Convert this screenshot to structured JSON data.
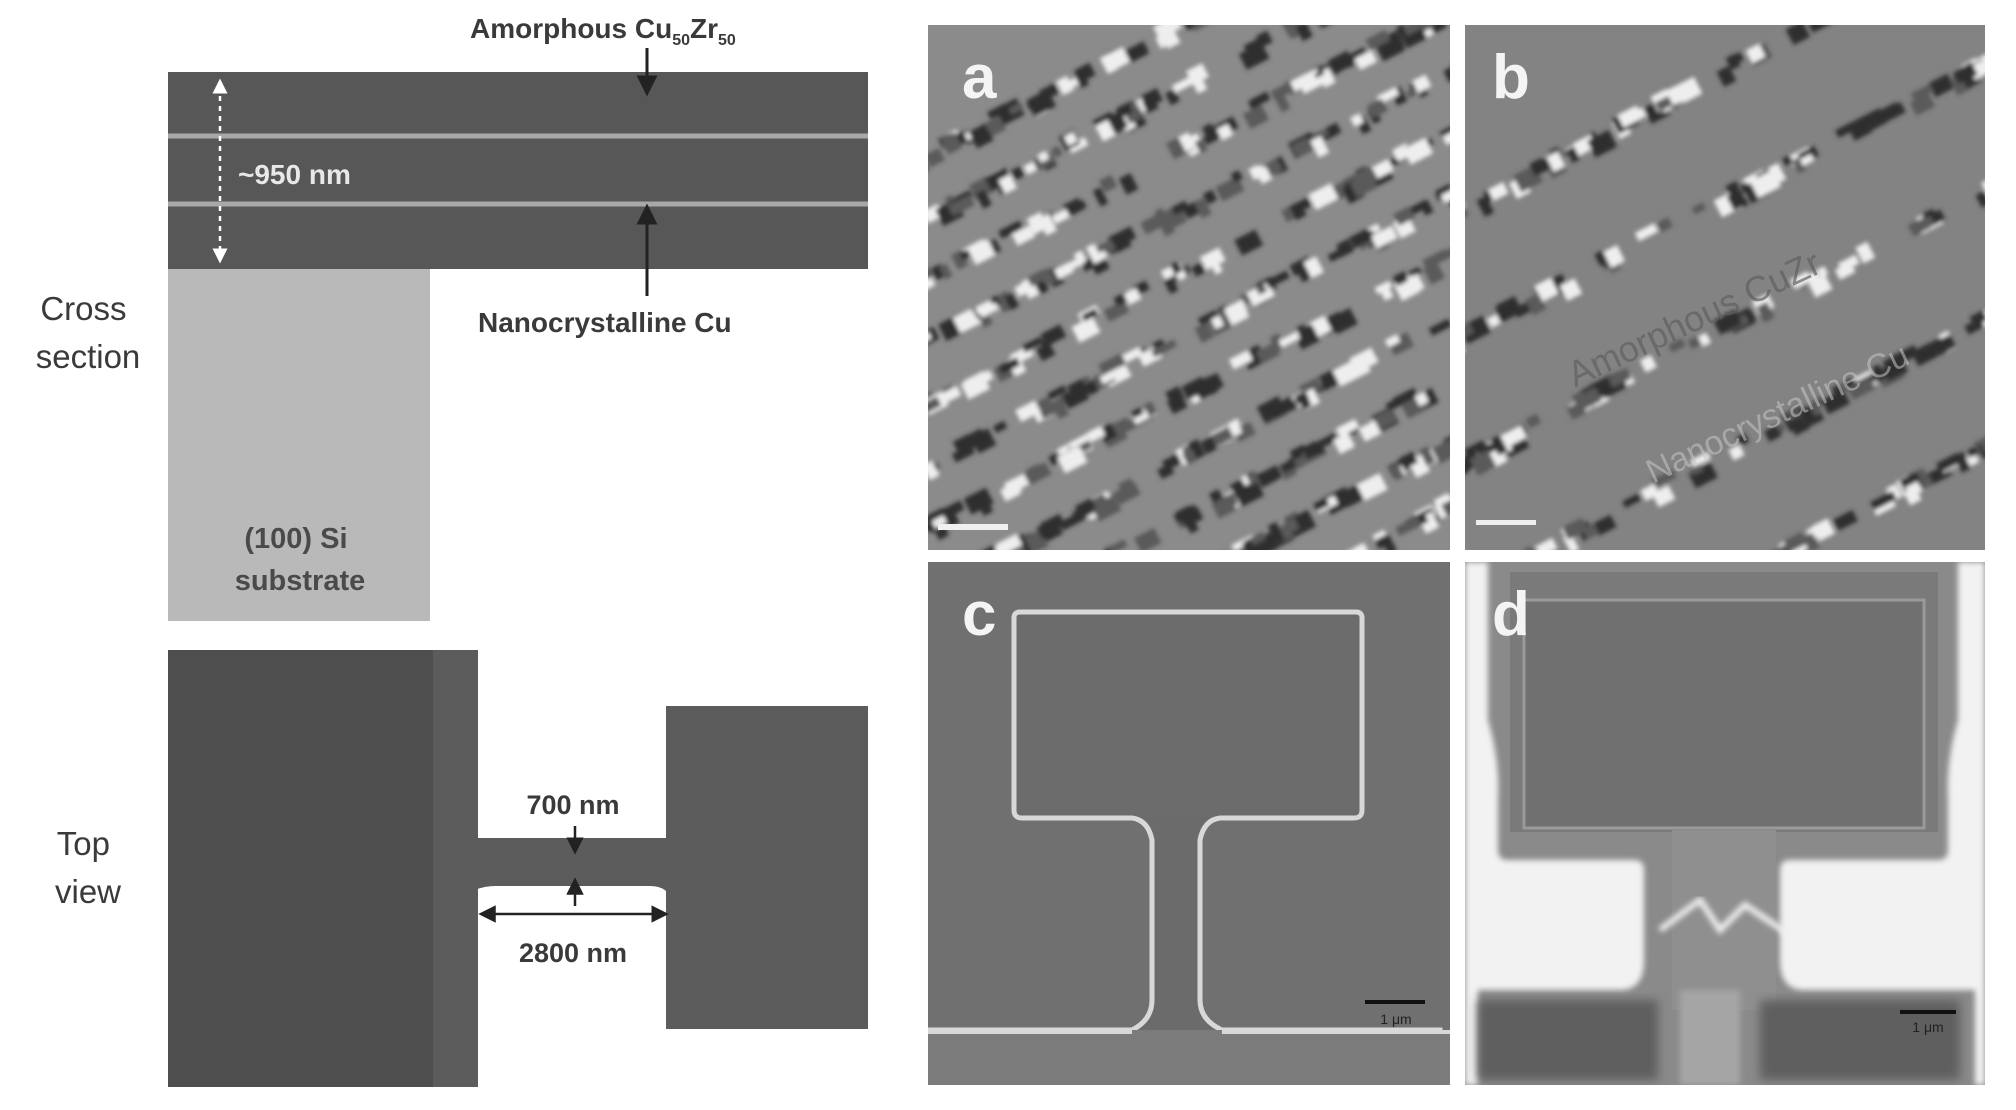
{
  "schematic": {
    "cross_section_label": [
      "Cross",
      "section"
    ],
    "top_view_label": [
      "Top",
      "view"
    ],
    "amorphous_label_prefix": "Amorphous Cu",
    "amorphous_sub1": "50",
    "amorphous_mid": "Zr",
    "amorphous_sub2": "50",
    "nanocrystalline_label": "Nanocrystalline Cu",
    "thickness_label": "~950 nm",
    "substrate_label": [
      "(100) Si",
      "substrate"
    ],
    "width_label": "700 nm",
    "length_label": "2800 nm"
  },
  "panels": {
    "a": {
      "letter": "a"
    },
    "b": {
      "letter": "b",
      "overlay_amorphous": "Amorphous CuZr",
      "overlay_nano": "Nanocrystalline Cu"
    },
    "c": {
      "letter": "c",
      "scalebar": "1 μm"
    },
    "d": {
      "letter": "d",
      "scalebar": "1 μm"
    }
  },
  "colors": {
    "film_dark": "#575757",
    "substrate_gray": "#b9b9b9",
    "topview_dark": "#4e4e4e",
    "topview_mid": "#5c5c5c",
    "tem_bg": "#8b8b8b",
    "sem_bg": "#6e6e6e"
  }
}
